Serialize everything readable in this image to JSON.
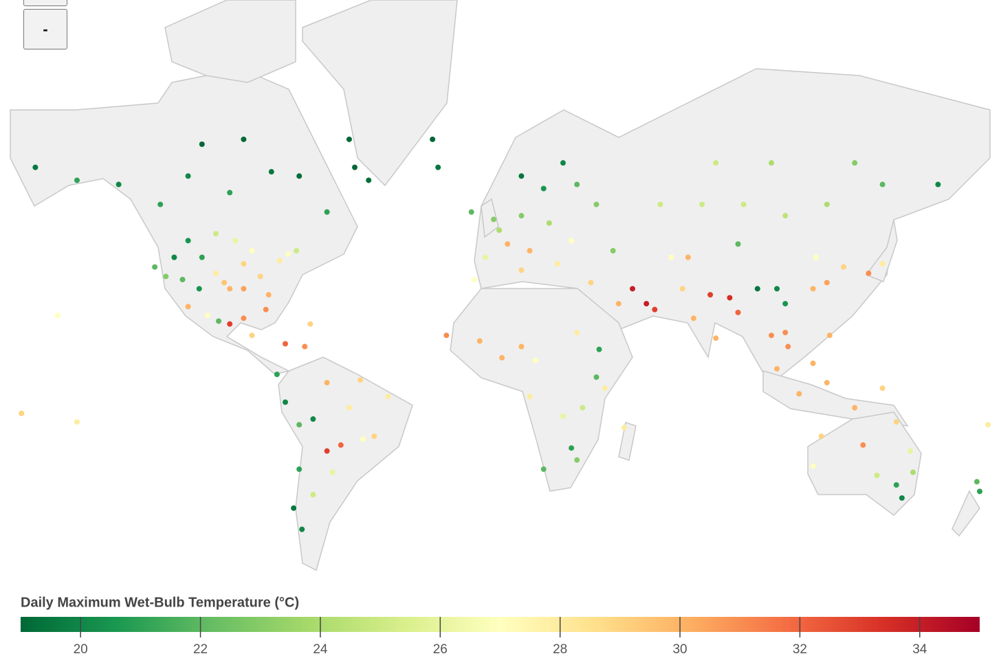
{
  "controls": {
    "zoom_out": "-"
  },
  "map": {
    "type": "scatter-map",
    "colorbar": {
      "title": "Daily Maximum Wet-Bulb Temperature (°C)",
      "lim": [
        19,
        35
      ],
      "ticks": [
        20,
        22,
        24,
        26,
        28,
        30,
        32,
        34
      ],
      "colors": [
        "#006837",
        "#1a9850",
        "#66bd63",
        "#a6d96a",
        "#d9ef8b",
        "#ffffbf",
        "#fee08b",
        "#fdae61",
        "#f46d43",
        "#d73027",
        "#a50026"
      ]
    },
    "stations": {
      "lon": [
        -150,
        -165,
        -135,
        -120,
        -110,
        -95,
        -80,
        -70,
        -90,
        -105,
        -60,
        -50,
        -45,
        -22,
        -52,
        -122,
        -118,
        -112,
        -105,
        -97,
        -95,
        -90,
        -84,
        -81,
        -77,
        -74,
        -71,
        -87,
        -93,
        -100,
        -90,
        -100,
        -110,
        -115,
        -103,
        -99,
        -95,
        -90,
        -87,
        -82,
        -66,
        -75,
        -110,
        -106,
        -78,
        -75,
        -70,
        -70,
        -72,
        -58,
        -60,
        -55,
        -47,
        -43,
        -38,
        -48,
        -60,
        -52,
        -65,
        -65,
        -69,
        -68,
        -3,
        0,
        10,
        2,
        13,
        23,
        30,
        18,
        25,
        10,
        37,
        20,
        28,
        5,
        -8,
        -20,
        35,
        45,
        55,
        50,
        58,
        -17,
        -5,
        3,
        10,
        30,
        38,
        37,
        32,
        28,
        18,
        30,
        47,
        40,
        13,
        25,
        15,
        -7,
        10,
        60,
        75,
        90,
        105,
        120,
        140,
        160,
        130,
        100,
        80,
        70,
        78,
        72,
        80,
        88,
        85,
        95,
        102,
        105,
        115,
        120,
        116,
        126,
        135,
        140,
        105,
        100,
        106,
        121,
        110,
        102,
        115,
        120,
        140,
        88,
        43,
        64,
        68,
        115,
        118,
        130,
        145,
        150,
        151,
        145,
        138,
        133,
        147,
        175,
        174,
        -157,
        -150,
        -170,
        178
      ],
      "lat": [
        61,
        64,
        60,
        55,
        62,
        58,
        63,
        62,
        70,
        69,
        53,
        64,
        61,
        70,
        70,
        37,
        34,
        33,
        40,
        32,
        30,
        30,
        34,
        28,
        39,
        41,
        42,
        42,
        45,
        47,
        38,
        35,
        45,
        40,
        21,
        19,
        18,
        20,
        14,
        23,
        18,
        11,
        24,
        30,
        0,
        -10,
        -18,
        -33,
        -45,
        -34,
        -27,
        -25,
        -23,
        -22,
        -8,
        -2,
        -3,
        -12,
        -16,
        -41,
        -51,
        10,
        40,
        51,
        52,
        48,
        42,
        38,
        60,
        59,
        65,
        62,
        55,
        50,
        45,
        44,
        53,
        64,
        32,
        25,
        25,
        30,
        23,
        14,
        12,
        6,
        10,
        15,
        9,
        -1,
        -12,
        -26,
        -33,
        -30,
        -19,
        -5,
        -8,
        -15,
        5,
        33,
        36,
        55,
        55,
        55,
        52,
        55,
        60,
        60,
        65,
        65,
        65,
        40,
        28,
        20,
        13,
        22,
        27,
        30,
        30,
        25,
        30,
        32,
        40,
        37,
        35,
        38,
        15,
        14,
        10,
        14,
        -7,
        2,
        4,
        -3,
        -5,
        44,
        42,
        40,
        30,
        -32,
        -22,
        -12,
        -17,
        -27,
        -34,
        -38,
        -35,
        -25,
        -42,
        -40,
        -37,
        21,
        -17,
        -14,
        -18
      ],
      "values": [
        21,
        19.5,
        20,
        21,
        20,
        21,
        19.5,
        19.2,
        19,
        19,
        21,
        19,
        19.2,
        19,
        19,
        22,
        23,
        22,
        21,
        29.5,
        30,
        30.5,
        29,
        30,
        28,
        27,
        25,
        27,
        26,
        25,
        29,
        28,
        20.5,
        20,
        27,
        22,
        33,
        31,
        29,
        31,
        29,
        32,
        30,
        20.5,
        21,
        20,
        22,
        21,
        19.5,
        26,
        33,
        32,
        27,
        29,
        28,
        29,
        30,
        28,
        20,
        25,
        20,
        31,
        26,
        23,
        23,
        24,
        30,
        28,
        22,
        20.5,
        20,
        19.5,
        23,
        24,
        27,
        30,
        22,
        19.5,
        29,
        30,
        34,
        34,
        33,
        31,
        30,
        30,
        30,
        28,
        21,
        22,
        25,
        21,
        22,
        23,
        28,
        28,
        28,
        26,
        27,
        27,
        29,
        25,
        25,
        25,
        24.5,
        24,
        22,
        20,
        23,
        24,
        25,
        30,
        33,
        30,
        30,
        32,
        33.5,
        19.5,
        20,
        20.5,
        30,
        30.5,
        27,
        29,
        31,
        28,
        31,
        31,
        31,
        30,
        30,
        30,
        30,
        30,
        29,
        22,
        23,
        27,
        29,
        27,
        29,
        30,
        29,
        26,
        24,
        21,
        25,
        31,
        20,
        21,
        22,
        27,
        28,
        29,
        28
      ]
    }
  }
}
